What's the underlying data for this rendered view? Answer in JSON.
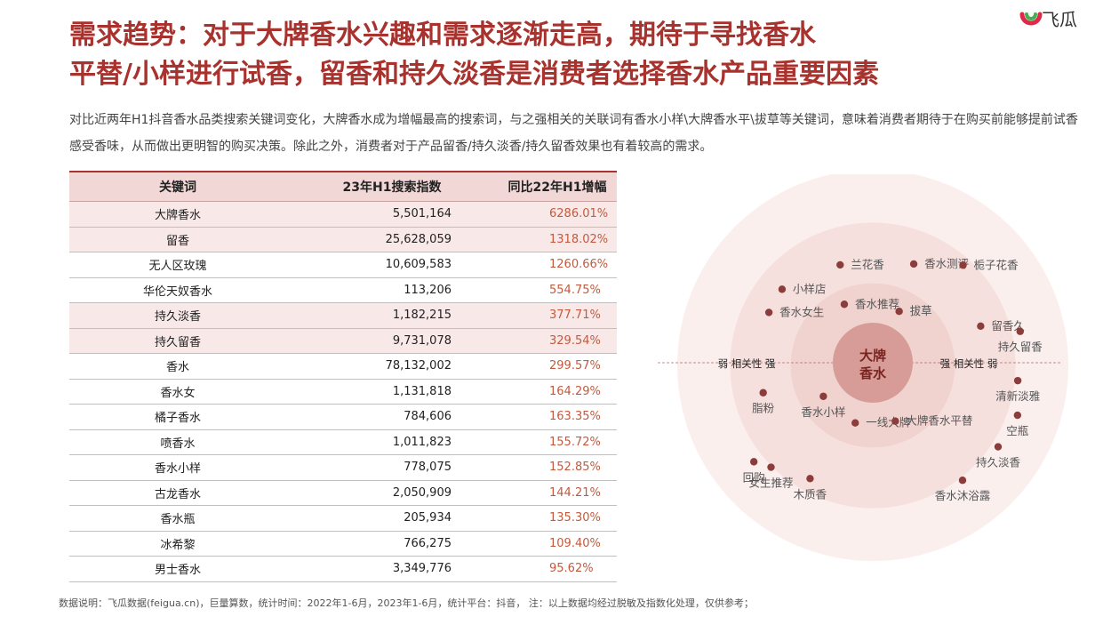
{
  "page": {
    "title_line1": "需求趋势：对于大牌香水兴趣和需求逐渐走高，期待于寻找香水",
    "title_line2": "平替/小样进行试香，留香和持久淡香是消费者选择香水产品重要因素",
    "brand": "飞瓜",
    "intro": "对比近两年H1抖音香水品类搜索关键词变化，大牌香水成为增幅最高的搜索词，与之强相关的关联词有香水小样\\大牌香水平\\拔草等关键词，意味着消费者期待于在购买前能够提前试香感受香味，从而做出更明智的购买决策。除此之外，消费者对于产品留香/持久淡香/持久留香效果也有着较高的需求。",
    "footnote": "数据说明：飞瓜数据(feigua.cn)，巨量算数，统计时间：2022年1-6月，2023年1-6月，统计平台：抖音，  注：以上数据均经过脱敏及指数化处理，仅供参考；"
  },
  "colors": {
    "accent": "#a8322d",
    "growth_text": "#c25a3e",
    "header_bg": "#f1d7d6",
    "row_shade": "#f8e9e8",
    "dot": "#8a3d3a",
    "ring_outer": "#fbefee",
    "ring_mid": "#f6e0de",
    "ring_inner": "#f0d2cf",
    "center": "#d79c98"
  },
  "chart_data": [
    {
      "type": "table",
      "columns": [
        "关键词",
        "23年H1搜索指数",
        "同比22年H1增幅"
      ],
      "rows": [
        [
          "大牌香水",
          "5,501,164",
          "6286.01%"
        ],
        [
          "留香",
          "25,628,059",
          "1318.02%"
        ],
        [
          "无人区玫瑰",
          "10,609,583",
          "1260.66%"
        ],
        [
          "华伦天奴香水",
          "113,206",
          "554.75%"
        ],
        [
          "持久淡香",
          "1,182,215",
          "377.71%"
        ],
        [
          "持久留香",
          "9,731,078",
          "329.54%"
        ],
        [
          "香水",
          "78,132,002",
          "299.57%"
        ],
        [
          "香水女",
          "1,131,818",
          "164.29%"
        ],
        [
          "橘子香水",
          "784,606",
          "163.35%"
        ],
        [
          "喷香水",
          "1,011,823",
          "155.72%"
        ],
        [
          "香水小样",
          "778,075",
          "152.85%"
        ],
        [
          "古龙香水",
          "2,050,909",
          "144.21%"
        ],
        [
          "香水瓶",
          "205,934",
          "135.30%"
        ],
        [
          "冰希黎",
          "766,275",
          "109.40%"
        ],
        [
          "男士香水",
          "3,349,776",
          "95.62%"
        ]
      ],
      "shaded_rows": [
        0,
        1,
        4,
        5
      ]
    },
    {
      "type": "scatter",
      "center_label_lines": [
        "大牌",
        "香水"
      ],
      "left_axis_label": "弱 相关性 强",
      "right_axis_label": "强 相关性 弱",
      "points": [
        {
          "label": "兰花香",
          "angle_deg": 108,
          "radius": 0.58,
          "label_side": "right"
        },
        {
          "label": "香水测评",
          "angle_deg": 68,
          "radius": 0.6,
          "label_side": "right"
        },
        {
          "label": "栀子花香",
          "angle_deg": 48,
          "radius": 0.74,
          "label_side": "right"
        },
        {
          "label": "小样店",
          "angle_deg": 140,
          "radius": 0.65,
          "label_side": "right"
        },
        {
          "label": "香水推荐",
          "angle_deg": 115,
          "radius": 0.37,
          "label_side": "right"
        },
        {
          "label": "拔草",
          "angle_deg": 64,
          "radius": 0.33,
          "label_side": "right"
        },
        {
          "label": "香水女生",
          "angle_deg": 153,
          "radius": 0.64,
          "label_side": "right"
        },
        {
          "label": "留香久",
          "angle_deg": 20,
          "radius": 0.63,
          "label_side": "right"
        },
        {
          "label": "持久留香",
          "angle_deg": 13,
          "radius": 0.83,
          "label_side": "below"
        },
        {
          "label": "清新淡雅",
          "angle_deg": -6,
          "radius": 0.8,
          "label_side": "below"
        },
        {
          "label": "脂粉",
          "angle_deg": 194,
          "radius": 0.62,
          "label_side": "below"
        },
        {
          "label": "香水小样",
          "angle_deg": 212,
          "radius": 0.32,
          "label_side": "below"
        },
        {
          "label": "空瓶",
          "angle_deg": -19,
          "radius": 0.84,
          "label_side": "below"
        },
        {
          "label": "一线大牌",
          "angle_deg": 253,
          "radius": 0.33,
          "label_side": "right"
        },
        {
          "label": "大牌香水平替",
          "angle_deg": 292,
          "radius": 0.33,
          "label_side": "right"
        },
        {
          "label": "持久淡香",
          "angle_deg": -33,
          "radius": 0.82,
          "label_side": "below"
        },
        {
          "label": "回购",
          "angle_deg": 219,
          "radius": 0.84,
          "label_side": "below"
        },
        {
          "label": "女生推荐",
          "angle_deg": 225,
          "radius": 0.79,
          "label_side": "below"
        },
        {
          "label": "木质香",
          "angle_deg": 241,
          "radius": 0.71,
          "label_side": "below"
        },
        {
          "label": "香水沐浴露",
          "angle_deg": 308,
          "radius": 0.8,
          "label_side": "below"
        }
      ]
    }
  ]
}
